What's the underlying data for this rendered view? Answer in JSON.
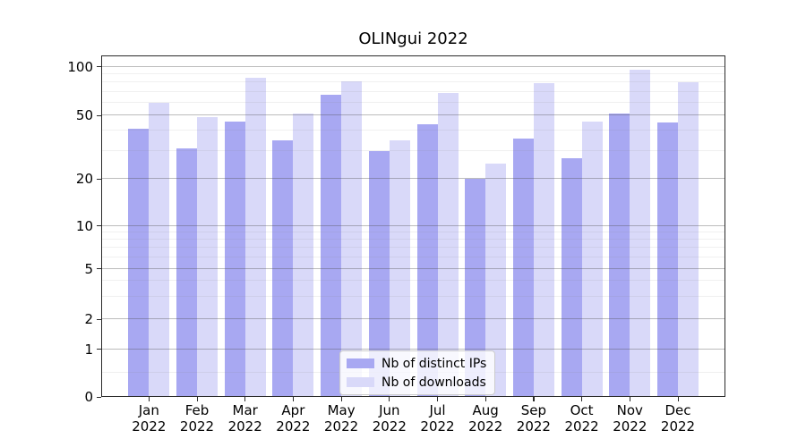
{
  "title": "OLINgui 2022",
  "colors": {
    "distinct_ips_bar": "#a8a8f2",
    "downloads_bar": "#d9d9f9",
    "major_grid": "#b0b0b0",
    "minor_grid": "#e9e9e9",
    "spine": "#2a2a2a",
    "legend_border": "#cccccc"
  },
  "legend": {
    "position": "lower center",
    "items": [
      {
        "label": "Nb of distinct IPs",
        "color_key": "distinct_ips_bar"
      },
      {
        "label": "Nb of downloads",
        "color_key": "downloads_bar"
      }
    ]
  },
  "x_axis": {
    "year_label": "2022"
  },
  "chart_data": {
    "type": "bar",
    "title": "OLINgui 2022",
    "categories": [
      "Jan",
      "Feb",
      "Mar",
      "Apr",
      "May",
      "Jun",
      "Jul",
      "Aug",
      "Sep",
      "Oct",
      "Nov",
      "Dec"
    ],
    "year_label": "2022",
    "series": [
      {
        "name": "Nb of distinct IPs",
        "color": "#a8a8f2",
        "values": [
          41,
          31,
          46,
          35,
          67,
          30,
          44,
          20,
          36,
          27,
          51,
          45
        ]
      },
      {
        "name": "Nb of downloads",
        "color": "#d9d9f9",
        "values": [
          60,
          49,
          85,
          51,
          81,
          35,
          69,
          25,
          79,
          46,
          96,
          80
        ]
      }
    ],
    "xlabel": "",
    "ylabel": "",
    "yscale": "asinh (linear 0-1, logarithmic above)",
    "yticks_major": [
      0,
      1,
      2,
      5,
      10,
      20,
      50,
      100
    ],
    "yticks_minor": [
      0.5,
      3,
      4,
      6,
      7,
      8,
      9,
      30,
      40,
      60,
      70,
      80,
      90
    ],
    "ylim": [
      0,
      117
    ],
    "grid": true,
    "legend_position": "lower center"
  }
}
